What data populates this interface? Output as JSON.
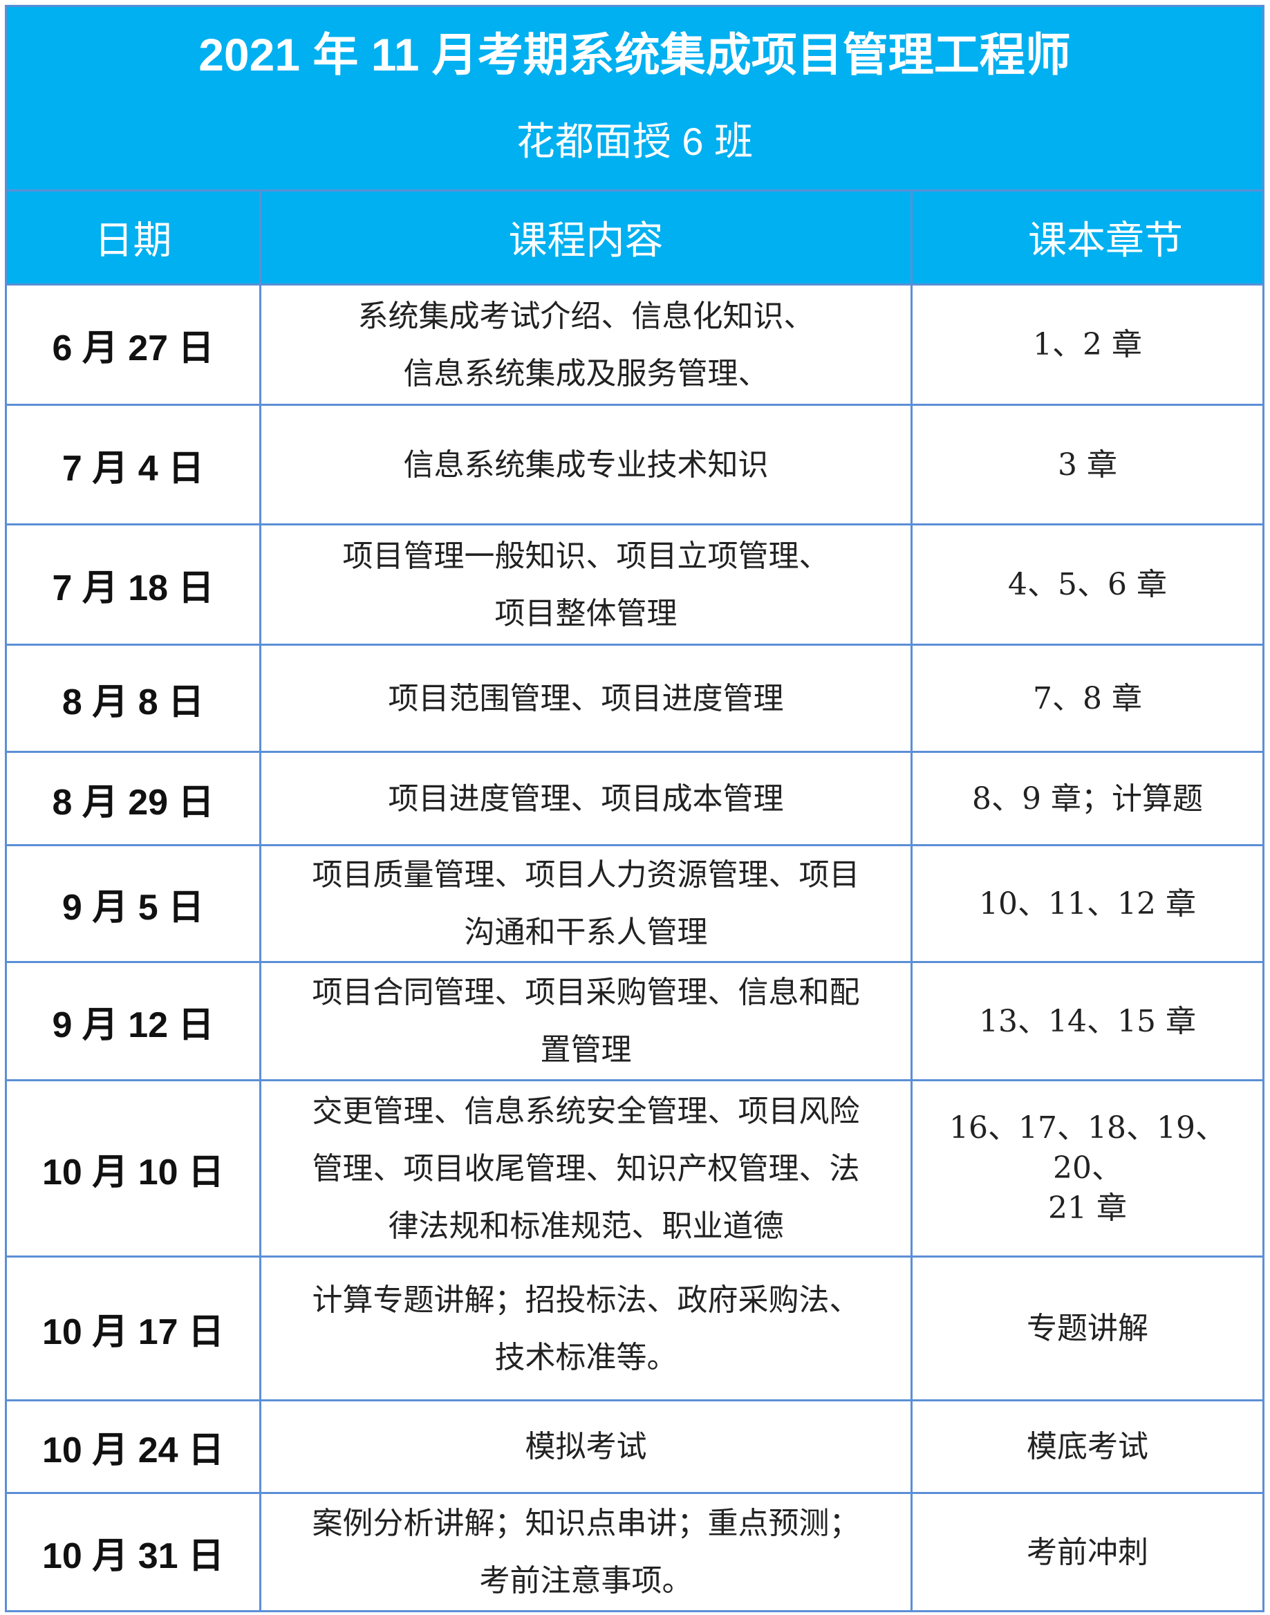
{
  "title": "2021 年 11 月考期系统集成项目管理工程师",
  "subtitle": "花都面授 6 班",
  "headers": [
    "日期",
    "课程内容",
    "课本章节"
  ],
  "accent_color": "#00b0f0",
  "border_color": "#5b8fd6",
  "rows": [
    {
      "date": "6 月 27 日",
      "content": "系统集成考试介绍、信息化知识、\n信息系统集成及服务管理、",
      "chapters": "1、2 章"
    },
    {
      "date": "7 月 4 日",
      "content": "信息系统集成专业技术知识",
      "chapters": "3 章"
    },
    {
      "date": "7 月 18 日",
      "content": "项目管理一般知识、项目立项管理、\n项目整体管理",
      "chapters": "4、5、6 章"
    },
    {
      "date": "8 月 8 日",
      "content": "项目范围管理、项目进度管理",
      "chapters": "7、8 章"
    },
    {
      "date": "8 月 29 日",
      "content": "项目进度管理、项目成本管理",
      "chapters": "8、9 章；计算题"
    },
    {
      "date": "9 月 5 日",
      "content": "项目质量管理、项目人力资源管理、项目\n沟通和干系人管理",
      "chapters": "10、11、12 章"
    },
    {
      "date": "9 月 12 日",
      "content": "项目合同管理、项目采购管理、信息和配\n置管理",
      "chapters": "13、14、15 章"
    },
    {
      "date": "10 月 10 日",
      "content": "交更管理、信息系统安全管理、项目风险\n管理、项目收尾管理、知识产权管理、法\n律法规和标准规范、职业道德",
      "chapters": "16、17、18、19、20、\n21 章"
    },
    {
      "date": "10 月 17 日",
      "content": "计算专题讲解；招投标法、政府采购法、\n技术标准等。",
      "chapters": "专题讲解"
    },
    {
      "date": "10 月 24 日",
      "content": "模拟考试",
      "chapters": "模底考试"
    },
    {
      "date": "10 月 31 日",
      "content": "案例分析讲解；知识点串讲；重点预测；\n考前注意事项。",
      "chapters": "考前冲刺"
    }
  ]
}
